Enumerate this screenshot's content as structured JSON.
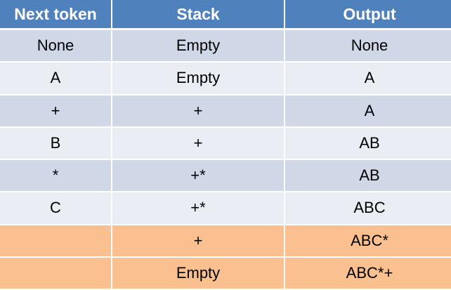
{
  "table": {
    "headers": [
      "Next token",
      "Stack",
      "Output"
    ],
    "rows": [
      {
        "token": "None",
        "stack": "Empty",
        "output": "None",
        "style": "dark"
      },
      {
        "token": "A",
        "stack": "Empty",
        "output": "A",
        "style": "light"
      },
      {
        "token": "+",
        "stack": "+",
        "output": "A",
        "style": "dark"
      },
      {
        "token": "B",
        "stack": "+",
        "output": "AB",
        "style": "light"
      },
      {
        "token": "*",
        "stack": "+*",
        "output": "AB",
        "style": "dark"
      },
      {
        "token": "C",
        "stack": "+*",
        "output": "ABC",
        "style": "light"
      },
      {
        "token": "",
        "stack": "+",
        "output": "ABC*",
        "style": "orange"
      },
      {
        "token": "",
        "stack": "Empty",
        "output": "ABC*+",
        "style": "orange"
      }
    ],
    "colors": {
      "header": "#4f81bd",
      "row_dark": "#d0d8e8",
      "row_light": "#e9edf4",
      "row_highlight": "#fac090"
    }
  }
}
